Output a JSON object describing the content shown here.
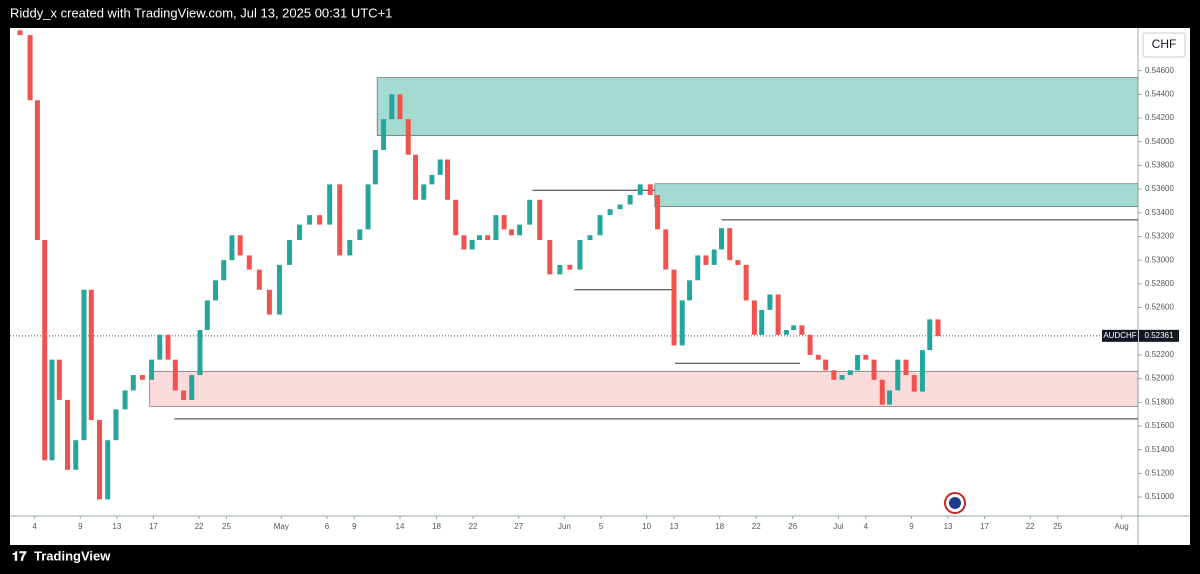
{
  "header": {
    "text": "Riddy_x created with TradingView.com, Jul 13, 2025 00:31 UTC+1"
  },
  "footer": {
    "brand": "TradingView"
  },
  "chart_data": {
    "type": "candlestick",
    "symbol": "AUDCHF",
    "currency": "CHF",
    "last_price": 0.52361,
    "up_color": "#26a69a",
    "down_color": "#ef5350",
    "xlim": [
      91.3,
      214.8
    ],
    "ylim": [
      0.5084,
      0.5496
    ],
    "xticks": [
      {
        "value": 94,
        "label": "4"
      },
      {
        "value": 99,
        "label": "9"
      },
      {
        "value": 103,
        "label": "13"
      },
      {
        "value": 107,
        "label": "17"
      },
      {
        "value": 112,
        "label": "22"
      },
      {
        "value": 115,
        "label": "25"
      },
      {
        "value": 121,
        "label": "May"
      },
      {
        "value": 126,
        "label": "6"
      },
      {
        "value": 129,
        "label": "9"
      },
      {
        "value": 134,
        "label": "14"
      },
      {
        "value": 138,
        "label": "18"
      },
      {
        "value": 142,
        "label": "22"
      },
      {
        "value": 147,
        "label": "27"
      },
      {
        "value": 152,
        "label": "Jun"
      },
      {
        "value": 156,
        "label": "5"
      },
      {
        "value": 161,
        "label": "10"
      },
      {
        "value": 164,
        "label": "13"
      },
      {
        "value": 169,
        "label": "18"
      },
      {
        "value": 173,
        "label": "22"
      },
      {
        "value": 177,
        "label": "26"
      },
      {
        "value": 182,
        "label": "Jul"
      },
      {
        "value": 185,
        "label": "4"
      },
      {
        "value": 190,
        "label": "9"
      },
      {
        "value": 194,
        "label": "13"
      },
      {
        "value": 198,
        "label": "17"
      },
      {
        "value": 203,
        "label": "22"
      },
      {
        "value": 206,
        "label": "25"
      },
      {
        "value": 213,
        "label": "Aug"
      }
    ],
    "yticks": [
      {
        "value": 0.546,
        "label": "0.54600"
      },
      {
        "value": 0.544,
        "label": "0.54400"
      },
      {
        "value": 0.542,
        "label": "0.54200"
      },
      {
        "value": 0.54,
        "label": "0.54000"
      },
      {
        "value": 0.538,
        "label": "0.53800"
      },
      {
        "value": 0.536,
        "label": "0.53600"
      },
      {
        "value": 0.534,
        "label": "0.53400"
      },
      {
        "value": 0.532,
        "label": "0.53200"
      },
      {
        "value": 0.53,
        "label": "0.53000"
      },
      {
        "value": 0.528,
        "label": "0.52800"
      },
      {
        "value": 0.526,
        "label": "0.52600"
      },
      {
        "value": 0.522,
        "label": "0.52200"
      },
      {
        "value": 0.52,
        "label": "0.52000"
      },
      {
        "value": 0.518,
        "label": "0.51800"
      },
      {
        "value": 0.516,
        "label": "0.51600"
      },
      {
        "value": 0.514,
        "label": "0.51400"
      },
      {
        "value": 0.512,
        "label": "0.51200"
      },
      {
        "value": 0.51,
        "label": "0.51000"
      }
    ],
    "zones": [
      {
        "x": [
          131.5,
          214.8
        ],
        "y": [
          0.54051,
          0.54541
        ],
        "color": "#a3dbd3"
      },
      {
        "x": [
          161.9,
          214.8
        ],
        "y": [
          0.53451,
          0.53645
        ],
        "color": "#a3dbd3"
      },
      {
        "x": [
          106.6,
          214.8
        ],
        "y": [
          0.51766,
          0.52062
        ],
        "color": "#fadadb"
      }
    ],
    "levels": [
      {
        "x": [
          148.5,
          161.9
        ],
        "y": 0.5359
      },
      {
        "x": [
          153.1,
          164.1
        ],
        "y": 0.5275
      },
      {
        "x": [
          169.2,
          214.8
        ],
        "y": 0.5334
      },
      {
        "x": [
          164.1,
          177.8
        ],
        "y": 0.5213
      },
      {
        "x": [
          109.3,
          214.8
        ],
        "y": 0.5166
      }
    ],
    "x": [
      92.4,
      93.5,
      94.3,
      95.1,
      95.9,
      96.7,
      97.6,
      98.5,
      99.4,
      100.2,
      101.1,
      102.0,
      102.9,
      103.9,
      104.8,
      105.8,
      106.8,
      107.7,
      108.6,
      109.4,
      110.3,
      111.2,
      112.1,
      112.9,
      113.8,
      114.7,
      115.6,
      116.5,
      117.5,
      118.6,
      119.7,
      120.8,
      121.9,
      123.0,
      124.1,
      125.2,
      126.3,
      127.4,
      128.5,
      129.6,
      130.5,
      131.3,
      132.2,
      133.1,
      134.0,
      134.9,
      135.7,
      136.6,
      137.5,
      138.4,
      139.2,
      140.1,
      141.0,
      141.9,
      142.7,
      143.6,
      144.5,
      145.4,
      146.2,
      147.1,
      148.2,
      149.3,
      150.4,
      151.5,
      152.6,
      153.7,
      154.8,
      155.9,
      157.0,
      158.1,
      159.2,
      160.3,
      161.4,
      162.2,
      163.1,
      164.0,
      164.9,
      165.7,
      166.6,
      167.5,
      168.4,
      169.2,
      170.1,
      171.0,
      171.9,
      172.8,
      173.6,
      174.5,
      175.4,
      176.3,
      177.1,
      178.0,
      178.9,
      179.8,
      180.6,
      181.5,
      182.4,
      183.3,
      184.1,
      185.0,
      185.9,
      186.8,
      187.6,
      188.5,
      189.4,
      190.3,
      191.2,
      192.0,
      192.9
    ],
    "open": [
      0.5494,
      0.549,
      0.5435,
      0.5317,
      0.5131,
      0.5216,
      0.5182,
      0.5123,
      0.5148,
      0.5275,
      0.5165,
      0.5098,
      0.5148,
      0.5174,
      0.519,
      0.5203,
      0.5199,
      0.5216,
      0.5237,
      0.5216,
      0.519,
      0.5182,
      0.5203,
      0.5241,
      0.5266,
      0.5283,
      0.53,
      0.5321,
      0.5304,
      0.5292,
      0.5275,
      0.5254,
      0.5296,
      0.5317,
      0.533,
      0.5338,
      0.533,
      0.5364,
      0.5304,
      0.5317,
      0.5326,
      0.5364,
      0.5393,
      0.5419,
      0.544,
      0.5419,
      0.5389,
      0.5351,
      0.5364,
      0.5372,
      0.5385,
      0.5351,
      0.5321,
      0.5309,
      0.5317,
      0.5321,
      0.5317,
      0.5338,
      0.5326,
      0.5321,
      0.533,
      0.5351,
      0.5317,
      0.5288,
      0.5296,
      0.5292,
      0.5317,
      0.5321,
      0.5338,
      0.5343,
      0.5347,
      0.5355,
      0.5364,
      0.5355,
      0.5326,
      0.5292,
      0.5228,
      0.5266,
      0.5283,
      0.5304,
      0.5296,
      0.5309,
      0.5327,
      0.53,
      0.5296,
      0.5266,
      0.5237,
      0.5258,
      0.5271,
      0.5237,
      0.5241,
      0.5245,
      0.5237,
      0.522,
      0.5216,
      0.5207,
      0.5199,
      0.5203,
      0.5207,
      0.522,
      0.5216,
      0.5199,
      0.5178,
      0.519,
      0.5216,
      0.5203,
      0.5189,
      0.5224,
      0.525
    ],
    "close": [
      0.549,
      0.5435,
      0.5317,
      0.5131,
      0.5216,
      0.5182,
      0.5123,
      0.5148,
      0.5275,
      0.5165,
      0.5098,
      0.5148,
      0.5174,
      0.519,
      0.5203,
      0.5199,
      0.5216,
      0.5237,
      0.5216,
      0.519,
      0.5182,
      0.5203,
      0.5241,
      0.5266,
      0.5283,
      0.53,
      0.5321,
      0.5304,
      0.5292,
      0.5275,
      0.5254,
      0.5296,
      0.5317,
      0.533,
      0.5338,
      0.533,
      0.5364,
      0.5304,
      0.5317,
      0.5326,
      0.5364,
      0.5393,
      0.5419,
      0.544,
      0.5419,
      0.5389,
      0.5351,
      0.5364,
      0.5372,
      0.5385,
      0.5351,
      0.5321,
      0.5309,
      0.5317,
      0.5321,
      0.5317,
      0.5338,
      0.5326,
      0.5321,
      0.533,
      0.5351,
      0.5317,
      0.5288,
      0.5296,
      0.5292,
      0.5317,
      0.5321,
      0.5338,
      0.5343,
      0.5347,
      0.5355,
      0.5364,
      0.5355,
      0.5326,
      0.5292,
      0.5228,
      0.5266,
      0.5283,
      0.5304,
      0.5296,
      0.5309,
      0.5327,
      0.53,
      0.5296,
      0.5266,
      0.5237,
      0.5258,
      0.5271,
      0.5237,
      0.5241,
      0.5245,
      0.5237,
      0.522,
      0.5216,
      0.5207,
      0.5199,
      0.5203,
      0.5207,
      0.522,
      0.5216,
      0.5199,
      0.5178,
      0.519,
      0.5216,
      0.5203,
      0.5189,
      0.5224,
      0.525,
      0.5236
    ]
  }
}
